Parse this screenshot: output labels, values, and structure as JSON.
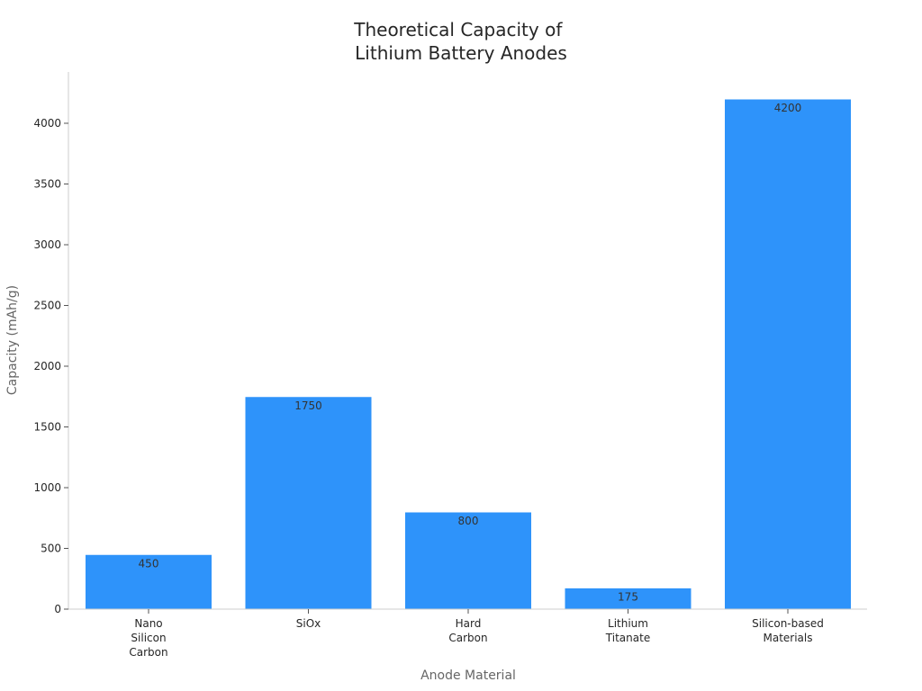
{
  "chart_data": {
    "type": "bar",
    "title": [
      "Theoretical Capacity of",
      "Lithium Battery Anodes"
    ],
    "xlabel": "Anode Material",
    "ylabel": "Capacity (mAh/g)",
    "categories": [
      [
        "Nano",
        "Silicon",
        "Carbon"
      ],
      [
        "SiOx"
      ],
      [
        "Hard",
        "Carbon"
      ],
      [
        "Lithium",
        "Titanate"
      ],
      [
        "Silicon-based",
        "Materials"
      ]
    ],
    "values": [
      450,
      1750,
      800,
      175,
      4200
    ],
    "data_labels": [
      "450",
      "1750",
      "800",
      "175",
      "4200"
    ],
    "ylim": [
      0,
      4400
    ],
    "yticks": [
      0,
      500,
      1000,
      1500,
      2000,
      2500,
      3000,
      3500,
      4000
    ],
    "ytick_labels": [
      "0",
      "500",
      "1000",
      "1500",
      "2000",
      "2500",
      "3000",
      "3500",
      "4000"
    ],
    "bar_color": "#2e93fa",
    "grid": false,
    "legend": "none"
  }
}
